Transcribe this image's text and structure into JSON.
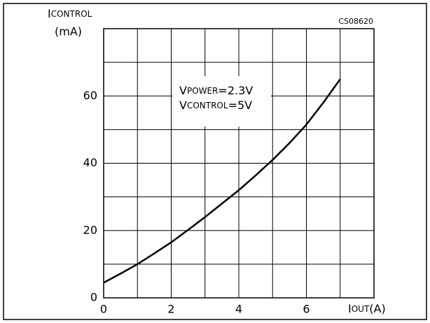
{
  "chart_data": {
    "type": "line",
    "code": "CS08620",
    "y_label": {
      "main": "I",
      "sub": "CONTROL",
      "unit": "(mA)"
    },
    "x_label": {
      "main": "I",
      "sub": "OUT",
      "unit": "(A)"
    },
    "annotation": [
      {
        "main": "V",
        "sub": "POWER",
        "rest": "=2.3V"
      },
      {
        "main": "V",
        "sub": "CONTROL",
        "rest": "=5V"
      }
    ],
    "x": [
      0,
      0.5,
      1,
      1.5,
      2,
      2.5,
      3,
      3.5,
      4,
      4.5,
      5,
      5.5,
      6,
      6.5,
      7
    ],
    "values": [
      4.5,
      7.2,
      10,
      13.2,
      16.5,
      20.2,
      24,
      28,
      32,
      36.4,
      41,
      46,
      51.5,
      58,
      65
    ],
    "color": "#000000",
    "xlim": [
      0,
      8
    ],
    "ylim": [
      0,
      80
    ],
    "xticks": [
      0,
      2,
      4,
      6
    ],
    "yticks": [
      0,
      20,
      40,
      60
    ],
    "grid": true,
    "grid_step": {
      "x": 1,
      "y": 10
    }
  }
}
